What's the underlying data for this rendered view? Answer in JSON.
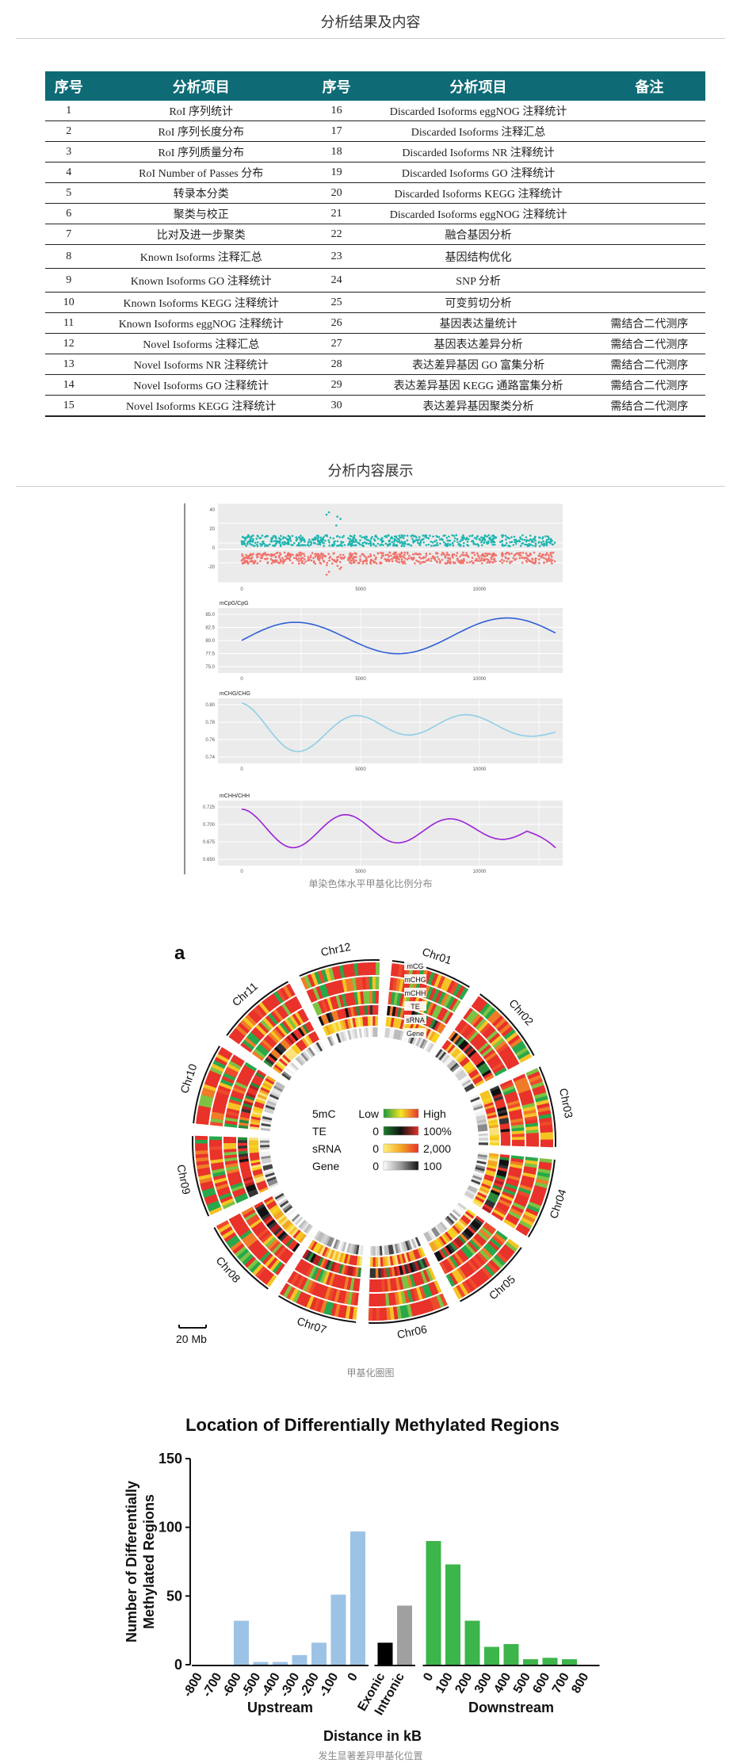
{
  "sections": {
    "table_title": "分析结果及内容",
    "display_title": "分析内容展示"
  },
  "table": {
    "headers": [
      "序号",
      "分析项目",
      "序号",
      "分析项目",
      "备注"
    ],
    "rows": [
      [
        "1",
        "RoI 序列统计",
        "16",
        "Discarded Isoforms eggNOG 注释统计",
        ""
      ],
      [
        "2",
        "RoI 序列长度分布",
        "17",
        "Discarded Isoforms 注释汇总",
        ""
      ],
      [
        "3",
        "RoI 序列质量分布",
        "18",
        "Discarded Isoforms NR 注释统计",
        ""
      ],
      [
        "4",
        "RoI Number of Passes 分布",
        "19",
        "Discarded Isoforms GO 注释统计",
        ""
      ],
      [
        "5",
        "转录本分类",
        "20",
        "Discarded Isoforms KEGG 注释统计",
        ""
      ],
      [
        "6",
        "聚类与校正",
        "21",
        "Discarded Isoforms eggNOG 注释统计",
        ""
      ],
      [
        "7",
        "比对及进一步聚类",
        "22",
        "融合基因分析",
        ""
      ],
      [
        "8",
        "Known Isoforms 注释汇总",
        "23",
        "基因结构优化",
        ""
      ],
      [
        "9",
        "Known  Isoforms  GO 注释统计",
        "24",
        "SNP 分析",
        ""
      ],
      [
        "10",
        "Known Isoforms KEGG 注释统计",
        "25",
        "可变剪切分析",
        ""
      ],
      [
        "11",
        "Known Isoforms eggNOG 注释统计",
        "26",
        "基因表达量统计",
        "需结合二代测序"
      ],
      [
        "12",
        "Novel Isoforms 注释汇总",
        "27",
        "基因表达差异分析",
        "需结合二代测序"
      ],
      [
        "13",
        "Novel Isoforms NR 注释统计",
        "28",
        "表达差异基因 GO 富集分析",
        "需结合二代测序"
      ],
      [
        "14",
        "Novel Isoforms GO 注释统计",
        "29",
        "表达差异基因 KEGG 通路富集分析",
        "需结合二代测序"
      ],
      [
        "15",
        "Novel Isoforms KEGG 注释统计",
        "30",
        "表达差异基因聚类分析",
        "需结合二代测序"
      ]
    ]
  },
  "figure1": {
    "caption": "单染色体水平甲基化比例分布",
    "panel_labels": [
      "mCpG/CpG",
      "mCHG/CHG",
      "mCHH/CHH"
    ],
    "x_ticks": [
      "0",
      "5000",
      "10000"
    ],
    "scatter_y_ticks": [
      "40",
      "20",
      "0",
      "-20"
    ],
    "cpg_y_ticks": [
      "85.0",
      "82.5",
      "80.0",
      "77.5",
      "75.0"
    ],
    "chg_y_ticks": [
      "0.80",
      "0.78",
      "0.76",
      "0.74"
    ],
    "chh_y_ticks": [
      "0.725",
      "0.700",
      "0.675",
      "0.650"
    ],
    "colors": {
      "scatter_top": "#1fb5b0",
      "scatter_bottom": "#f0726a",
      "cpg": "#2f5fd6",
      "chg": "#8fcfe6",
      "chh": "#9b22d6",
      "panel_bg": "#ebebeb"
    }
  },
  "figure2": {
    "caption": "甲基化圈图",
    "panel_letter": "a",
    "chromosomes": [
      "Chr01",
      "Chr02",
      "Chr03",
      "Chr04",
      "Chr05",
      "Chr06",
      "Chr07",
      "Chr08",
      "Chr09",
      "Chr10",
      "Chr11",
      "Chr12"
    ],
    "track_labels": [
      "mCG",
      "mCHG",
      "mCHH",
      "TE",
      "sRNA",
      "Gene"
    ],
    "legend": {
      "rows": [
        {
          "name": "5mC",
          "low": "Low",
          "high": "High"
        },
        {
          "name": "TE",
          "low": "0",
          "high": "100%"
        },
        {
          "name": "sRNA",
          "low": "0",
          "high": "2,000"
        },
        {
          "name": "Gene",
          "low": "0",
          "high": "100"
        }
      ]
    },
    "scale_bar": "20 Mb"
  },
  "figure3": {
    "caption": "发生显著差异甲基化位置",
    "chart_data": {
      "type": "bar",
      "title": "Location of Differentially Methylated Regions",
      "xlabel": "Distance in kB",
      "ylabel": "Number of Differentially Methylated Regions",
      "ylim": [
        0,
        150
      ],
      "y_ticks": [
        "0",
        "50",
        "100",
        "150"
      ],
      "groups": [
        {
          "name": "Upstream",
          "color": "#9cc3e5",
          "categories": [
            "-800",
            "-700",
            "-600",
            "-500",
            "-400",
            "-300",
            "-200",
            "-100",
            "0"
          ],
          "values": [
            0,
            0,
            32,
            2,
            2,
            7,
            16,
            51,
            97
          ]
        },
        {
          "name": "",
          "colors": [
            "#000000",
            "#a0a0a0"
          ],
          "categories": [
            "Exonic",
            "Intronic"
          ],
          "values": [
            16,
            43
          ]
        },
        {
          "name": "Downstream",
          "color": "#3cb54a",
          "categories": [
            "0",
            "100",
            "200",
            "300",
            "400",
            "500",
            "600",
            "700",
            "800"
          ],
          "values": [
            90,
            73,
            32,
            13,
            15,
            4,
            5,
            4,
            0
          ]
        }
      ]
    }
  }
}
